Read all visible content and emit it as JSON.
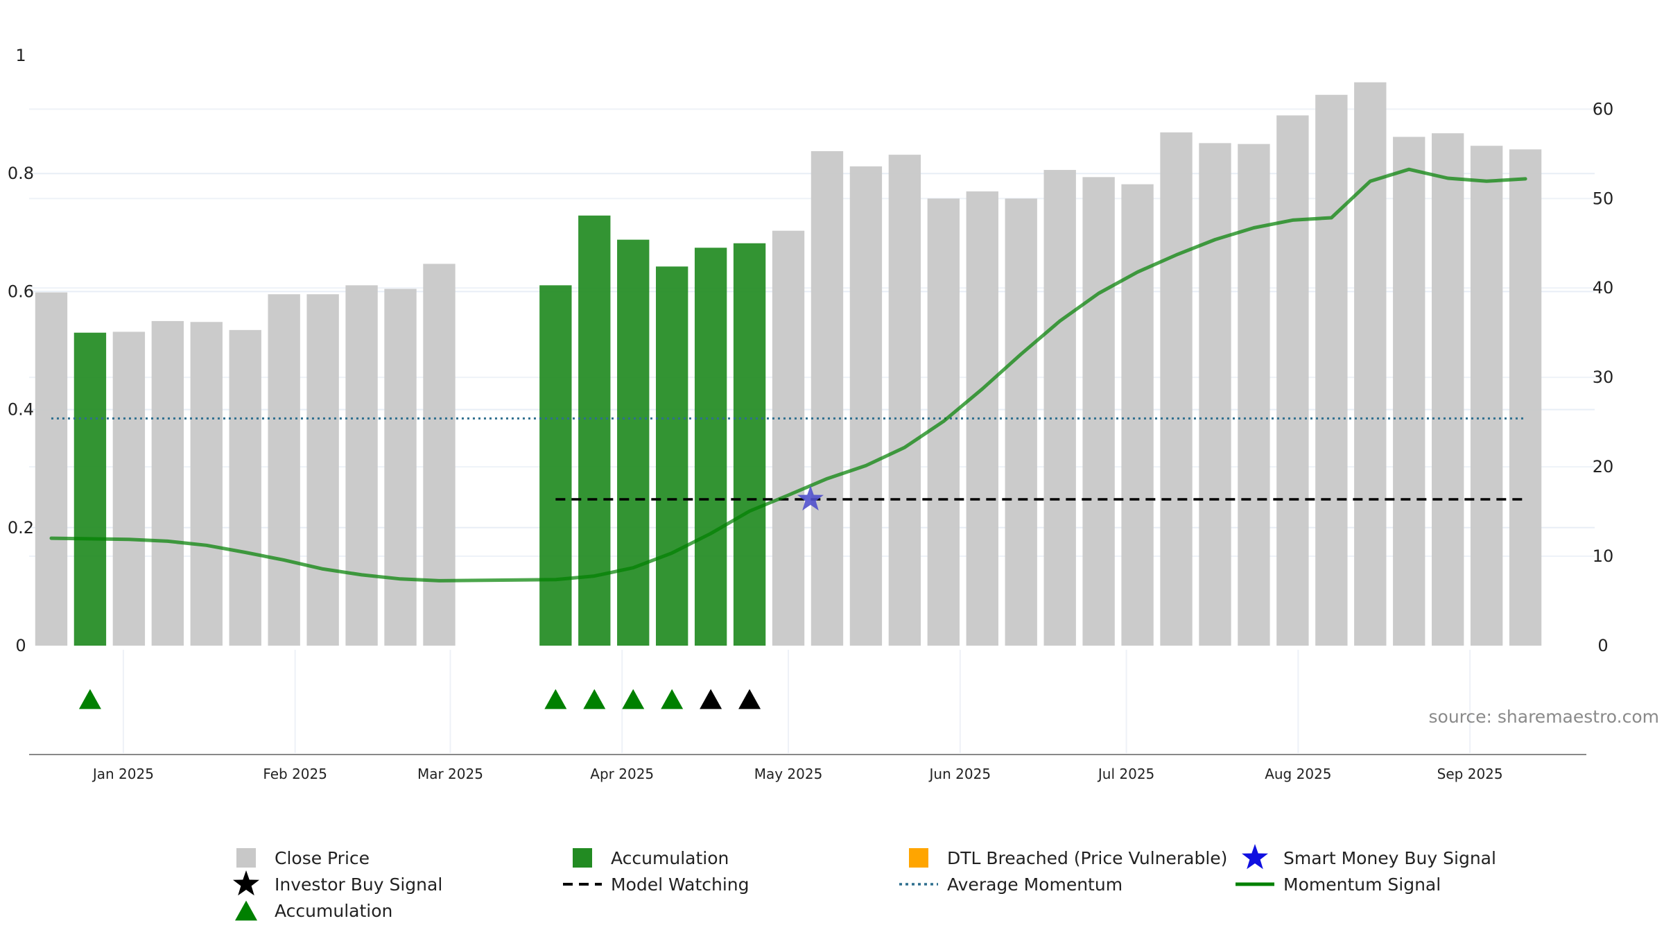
{
  "chart_data": {
    "type": "bar",
    "source_label": "source: sharemaestro.com",
    "left_axis": {
      "ylim": [
        0,
        1
      ],
      "ticks": [
        0,
        0.2,
        0.4,
        0.6,
        0.8,
        1
      ],
      "tick_labels": [
        "0",
        "0.2",
        "0.4",
        "0.6",
        "0.8",
        "1"
      ]
    },
    "right_axis": {
      "ylim": [
        0,
        66
      ],
      "ticks": [
        0,
        10,
        20,
        30,
        40,
        50,
        60
      ],
      "tick_labels": [
        "0",
        "10",
        "20",
        "30",
        "40",
        "50",
        "60"
      ]
    },
    "x_axis": {
      "range": [
        "2024-12-15",
        "2025-09-22"
      ],
      "ticks": [
        "2025-01-01",
        "2025-02-01",
        "2025-03-01",
        "2025-04-01",
        "2025-05-01",
        "2025-06-01",
        "2025-07-01",
        "2025-08-01",
        "2025-09-01"
      ],
      "tick_labels": [
        "Jan 2025",
        "Feb 2025",
        "Mar 2025",
        "Apr 2025",
        "May 2025",
        "Jun 2025",
        "Jul 2025",
        "Aug 2025",
        "Sep 2025"
      ]
    },
    "grid": true,
    "legend_position": "bottom",
    "colors": {
      "close_price": "#c8c8c8",
      "accumulation_bar": "#228b22",
      "dtl_breached": "#ffa500",
      "smart_money": "#1010e0",
      "smart_money_marker": "#5050cc",
      "investor_buy": "#000000",
      "accumulation_marker": "#008000",
      "model_watching": "#000000",
      "average_momentum": "#2e6f8e",
      "momentum_signal": "#008000"
    },
    "bars": [
      {
        "date": "2024-12-19",
        "close": 39.5,
        "state": "close"
      },
      {
        "date": "2024-12-26",
        "close": 35.0,
        "state": "accumulation"
      },
      {
        "date": "2025-01-02",
        "close": 35.1,
        "state": "close"
      },
      {
        "date": "2025-01-09",
        "close": 36.3,
        "state": "close"
      },
      {
        "date": "2025-01-16",
        "close": 36.2,
        "state": "close"
      },
      {
        "date": "2025-01-23",
        "close": 35.3,
        "state": "close"
      },
      {
        "date": "2025-01-30",
        "close": 39.3,
        "state": "close"
      },
      {
        "date": "2025-02-06",
        "close": 39.3,
        "state": "close"
      },
      {
        "date": "2025-02-13",
        "close": 40.3,
        "state": "close"
      },
      {
        "date": "2025-02-20",
        "close": 39.9,
        "state": "close"
      },
      {
        "date": "2025-02-27",
        "close": 42.7,
        "state": "close"
      },
      {
        "date": "2025-03-20",
        "close": 40.3,
        "state": "accumulation"
      },
      {
        "date": "2025-03-27",
        "close": 48.1,
        "state": "accumulation"
      },
      {
        "date": "2025-04-03",
        "close": 45.4,
        "state": "accumulation"
      },
      {
        "date": "2025-04-10",
        "close": 42.4,
        "state": "accumulation"
      },
      {
        "date": "2025-04-17",
        "close": 44.5,
        "state": "accumulation"
      },
      {
        "date": "2025-04-24",
        "close": 45.0,
        "state": "accumulation"
      },
      {
        "date": "2025-05-01",
        "close": 46.4,
        "state": "close"
      },
      {
        "date": "2025-05-08",
        "close": 55.3,
        "state": "close"
      },
      {
        "date": "2025-05-15",
        "close": 53.6,
        "state": "close"
      },
      {
        "date": "2025-05-22",
        "close": 54.9,
        "state": "close"
      },
      {
        "date": "2025-05-29",
        "close": 50.0,
        "state": "close"
      },
      {
        "date": "2025-06-05",
        "close": 50.8,
        "state": "close"
      },
      {
        "date": "2025-06-12",
        "close": 50.0,
        "state": "close"
      },
      {
        "date": "2025-06-19",
        "close": 53.2,
        "state": "close"
      },
      {
        "date": "2025-06-26",
        "close": 52.4,
        "state": "close"
      },
      {
        "date": "2025-07-03",
        "close": 51.6,
        "state": "close"
      },
      {
        "date": "2025-07-10",
        "close": 57.4,
        "state": "close"
      },
      {
        "date": "2025-07-17",
        "close": 56.2,
        "state": "close"
      },
      {
        "date": "2025-07-24",
        "close": 56.1,
        "state": "close"
      },
      {
        "date": "2025-07-31",
        "close": 59.3,
        "state": "close"
      },
      {
        "date": "2025-08-07",
        "close": 61.6,
        "state": "close"
      },
      {
        "date": "2025-08-14",
        "close": 63.0,
        "state": "close"
      },
      {
        "date": "2025-08-21",
        "close": 56.9,
        "state": "close"
      },
      {
        "date": "2025-08-28",
        "close": 57.3,
        "state": "close"
      },
      {
        "date": "2025-09-04",
        "close": 55.9,
        "state": "close"
      },
      {
        "date": "2025-09-11",
        "close": 55.5,
        "state": "close"
      }
    ],
    "momentum_signal": [
      {
        "date": "2024-12-19",
        "value": 0.182
      },
      {
        "date": "2025-01-02",
        "value": 0.18
      },
      {
        "date": "2025-01-09",
        "value": 0.177
      },
      {
        "date": "2025-01-16",
        "value": 0.17
      },
      {
        "date": "2025-01-23",
        "value": 0.158
      },
      {
        "date": "2025-01-30",
        "value": 0.145
      },
      {
        "date": "2025-02-06",
        "value": 0.13
      },
      {
        "date": "2025-02-13",
        "value": 0.12
      },
      {
        "date": "2025-02-20",
        "value": 0.113
      },
      {
        "date": "2025-02-27",
        "value": 0.11
      },
      {
        "date": "2025-03-20",
        "value": 0.112
      },
      {
        "date": "2025-03-27",
        "value": 0.118
      },
      {
        "date": "2025-04-03",
        "value": 0.132
      },
      {
        "date": "2025-04-10",
        "value": 0.157
      },
      {
        "date": "2025-04-17",
        "value": 0.19
      },
      {
        "date": "2025-04-24",
        "value": 0.228
      },
      {
        "date": "2025-05-01",
        "value": 0.255
      },
      {
        "date": "2025-05-08",
        "value": 0.283
      },
      {
        "date": "2025-05-15",
        "value": 0.305
      },
      {
        "date": "2025-05-22",
        "value": 0.336
      },
      {
        "date": "2025-05-29",
        "value": 0.38
      },
      {
        "date": "2025-06-05",
        "value": 0.435
      },
      {
        "date": "2025-06-12",
        "value": 0.494
      },
      {
        "date": "2025-06-19",
        "value": 0.55
      },
      {
        "date": "2025-06-26",
        "value": 0.597
      },
      {
        "date": "2025-07-03",
        "value": 0.633
      },
      {
        "date": "2025-07-10",
        "value": 0.662
      },
      {
        "date": "2025-07-17",
        "value": 0.688
      },
      {
        "date": "2025-07-24",
        "value": 0.708
      },
      {
        "date": "2025-07-31",
        "value": 0.721
      },
      {
        "date": "2025-08-07",
        "value": 0.725
      },
      {
        "date": "2025-08-14",
        "value": 0.787
      },
      {
        "date": "2025-08-21",
        "value": 0.807
      },
      {
        "date": "2025-08-28",
        "value": 0.792
      },
      {
        "date": "2025-09-04",
        "value": 0.787
      },
      {
        "date": "2025-09-11",
        "value": 0.791
      }
    ],
    "average_momentum": {
      "value": 0.385,
      "from": "2024-12-19",
      "to": "2025-09-11"
    },
    "model_watching": {
      "value": 0.248,
      "from": "2025-03-20",
      "to": "2025-09-11"
    },
    "smart_money_signal": {
      "date": "2025-05-05",
      "value": 0.248
    },
    "accumulation_markers": [
      "2024-12-26",
      "2025-03-20",
      "2025-03-27",
      "2025-04-03",
      "2025-04-10"
    ],
    "investor_buy_markers": [
      "2025-04-17",
      "2025-04-24"
    ],
    "legend": [
      {
        "label": "Close Price",
        "symbol": "square",
        "color_key": "close_price"
      },
      {
        "label": "Accumulation",
        "symbol": "square",
        "color_key": "accumulation_bar"
      },
      {
        "label": "DTL Breached (Price Vulnerable)",
        "symbol": "square",
        "color_key": "dtl_breached"
      },
      {
        "label": "Smart Money Buy Signal",
        "symbol": "star",
        "color_key": "smart_money"
      },
      {
        "label": "Investor Buy Signal",
        "symbol": "star",
        "color_key": "investor_buy"
      },
      {
        "label": "Model Watching",
        "symbol": "dashed-line",
        "color_key": "model_watching"
      },
      {
        "label": "Average Momentum",
        "symbol": "dotted-line",
        "color_key": "average_momentum"
      },
      {
        "label": "Momentum Signal",
        "symbol": "solid-line",
        "color_key": "momentum_signal"
      },
      {
        "label": "Accumulation",
        "symbol": "triangle",
        "color_key": "accumulation_marker"
      }
    ]
  }
}
